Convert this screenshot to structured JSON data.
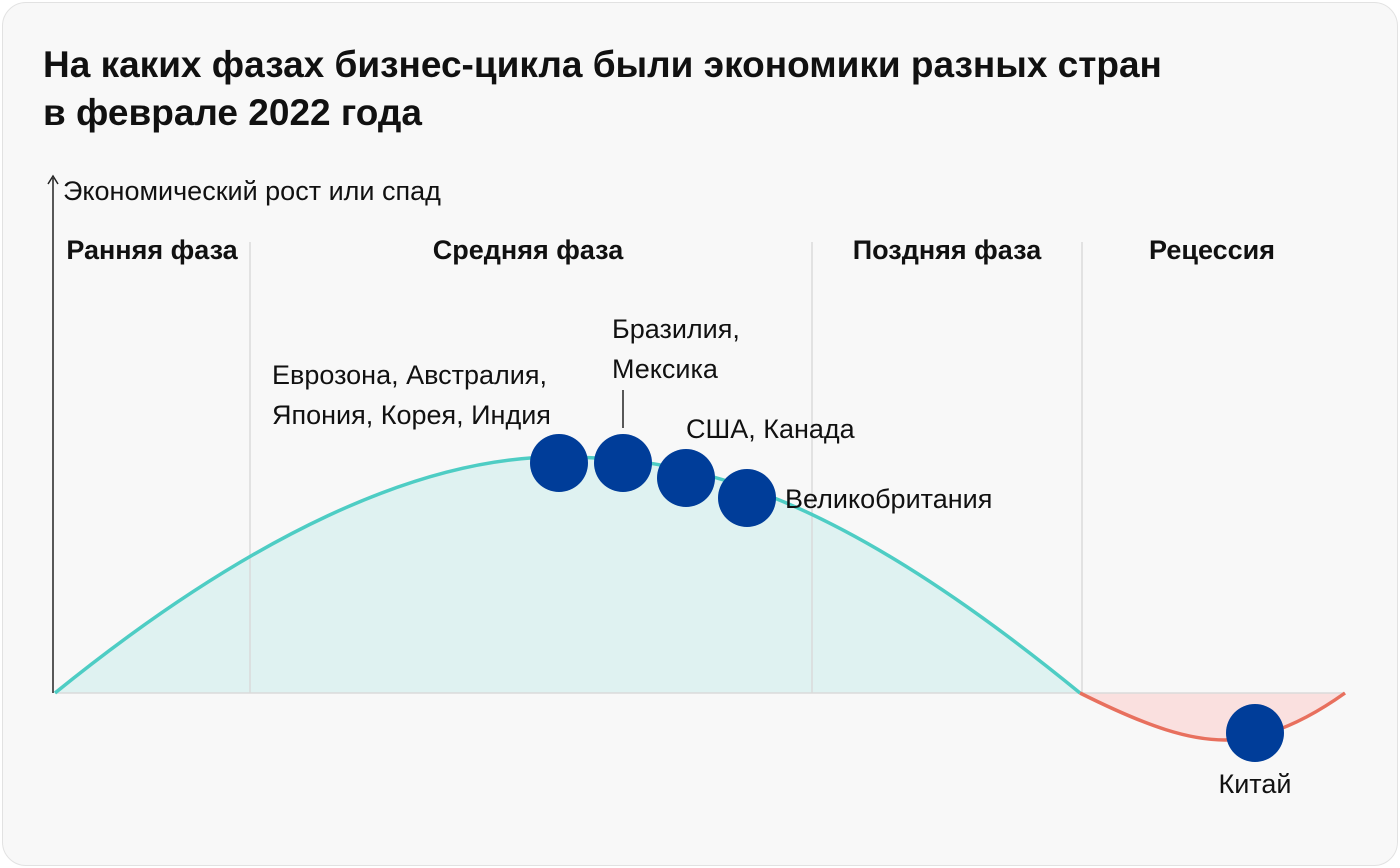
{
  "title": {
    "line1": "На каких фазах бизнес-цикла были экономики разных стран",
    "line2": "в феврале 2022 года"
  },
  "axis": {
    "y_label": "Экономический рост или спад"
  },
  "phases": [
    {
      "id": "early",
      "label": "Ранняя фаза"
    },
    {
      "id": "mid",
      "label": "Средняя фаза"
    },
    {
      "id": "late",
      "label": "Поздняя фаза"
    },
    {
      "id": "recession",
      "label": "Рецессия"
    }
  ],
  "countries": [
    {
      "id": "eurozone",
      "lines": [
        "Еврозона, Австралия,",
        "Япония, Корея, Индия"
      ]
    },
    {
      "id": "brazil",
      "lines": [
        "Бразилия,",
        "Мексика"
      ]
    },
    {
      "id": "usa",
      "lines": [
        "США, Канада"
      ]
    },
    {
      "id": "uk",
      "lines": [
        "Великобритания"
      ]
    },
    {
      "id": "china",
      "lines": [
        "Китай"
      ]
    }
  ],
  "colors": {
    "growth_line": "#4ecdc4",
    "growth_fill": "#dff2f1",
    "recession_line": "#e8705e",
    "recession_fill": "#fae0df",
    "marker": "#003d99",
    "divider": "#dadada",
    "axis": "#222222"
  }
}
